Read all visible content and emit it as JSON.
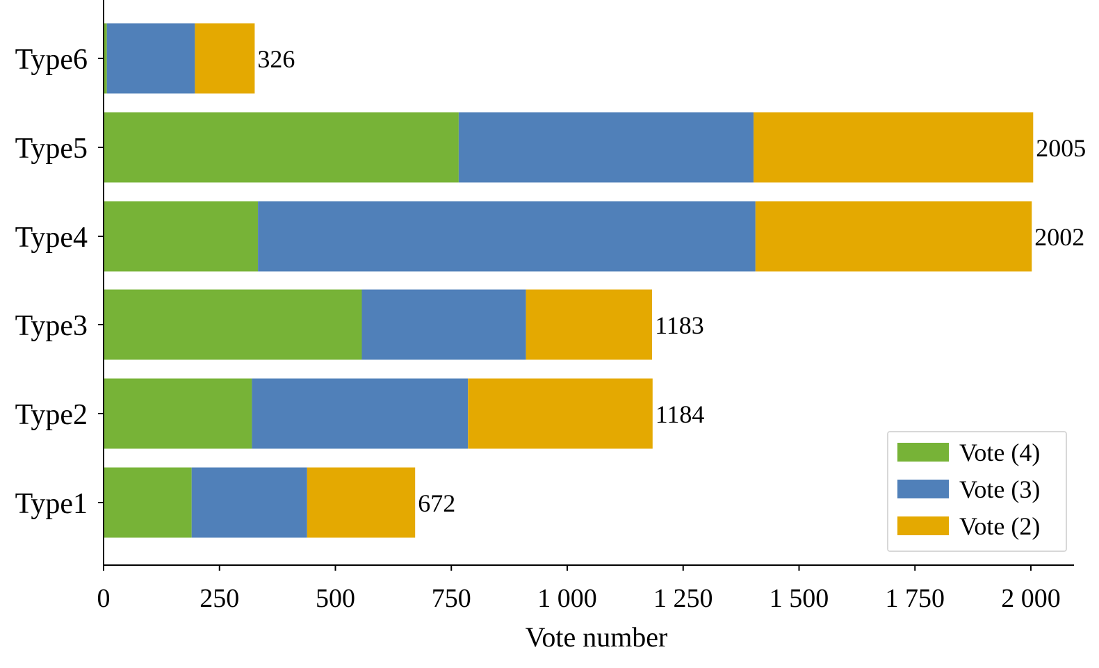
{
  "chart_data": {
    "type": "bar",
    "orientation": "horizontal",
    "stacked": true,
    "categories": [
      "Type1",
      "Type2",
      "Type3",
      "Type4",
      "Type5",
      "Type6"
    ],
    "series": [
      {
        "name": "Vote (4)",
        "color": "#77b337",
        "values": [
          190,
          320,
          557,
          333,
          766,
          7
        ]
      },
      {
        "name": "Vote (3)",
        "color": "#5080b9",
        "values": [
          249,
          466,
          354,
          1073,
          636,
          190
        ]
      },
      {
        "name": "Vote (2)",
        "color": "#e4a901",
        "values": [
          233,
          398,
          272,
          596,
          603,
          129
        ]
      }
    ],
    "totals": [
      672,
      1184,
      1183,
      2002,
      2005,
      326
    ],
    "total_labels": [
      "672",
      "1184",
      "1183",
      "2002",
      "2005",
      "326"
    ],
    "xlabel": "Vote number",
    "ylabel": "",
    "title": "",
    "xlim": [
      0,
      2100
    ],
    "xticks": [
      0,
      250,
      500,
      750,
      1000,
      1250,
      1500,
      1750,
      2000
    ],
    "xtick_labels": [
      "0",
      "250",
      "500",
      "750",
      "1 000",
      "1 250",
      "1 500",
      "1 750",
      "2 000"
    ],
    "grid": false,
    "legend_position": "bottom-right"
  }
}
